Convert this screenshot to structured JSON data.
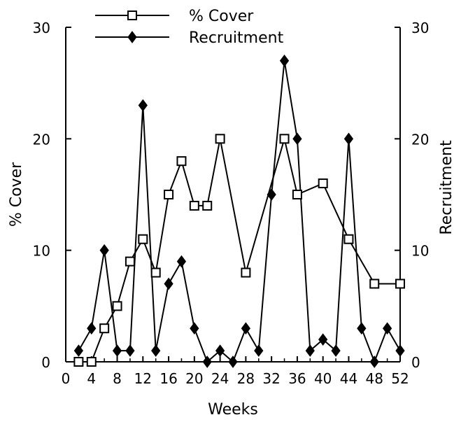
{
  "chart_data": {
    "type": "line",
    "xlabel": "Weeks",
    "ylabel_left": "% Cover",
    "ylabel_right": "Recruitment",
    "xlim": [
      0,
      52
    ],
    "ylim": [
      0,
      30
    ],
    "x_ticks": [
      "0",
      "4",
      "8",
      "12",
      "16",
      "20",
      "24",
      "28",
      "32",
      "36",
      "40",
      "44",
      "48",
      "52"
    ],
    "y_ticks_left": [
      "0",
      "10",
      "20",
      "30"
    ],
    "y_ticks_right": [
      "0",
      "10",
      "20",
      "30"
    ],
    "legend_position": "top",
    "series": [
      {
        "name": "% Cover",
        "marker": "open-square",
        "axis": "left",
        "x": [
          2,
          4,
          6,
          8,
          10,
          12,
          14,
          16,
          18,
          20,
          22,
          24,
          28,
          34,
          36,
          40,
          44,
          48,
          52
        ],
        "y": [
          0,
          0,
          3,
          5,
          9,
          11,
          8,
          15,
          18,
          14,
          14,
          20,
          8,
          20,
          15,
          16,
          11,
          7,
          7
        ]
      },
      {
        "name": "Recruitment",
        "marker": "filled-diamond",
        "axis": "right",
        "x": [
          2,
          4,
          6,
          8,
          10,
          12,
          14,
          16,
          18,
          20,
          22,
          24,
          26,
          28,
          30,
          32,
          34,
          36,
          38,
          40,
          42,
          44,
          46,
          48,
          50,
          52
        ],
        "y": [
          1,
          3,
          10,
          1,
          1,
          23,
          1,
          7,
          9,
          3,
          0,
          1,
          0,
          3,
          1,
          15,
          27,
          20,
          1,
          2,
          1,
          20,
          3,
          0,
          3,
          1
        ]
      }
    ]
  }
}
